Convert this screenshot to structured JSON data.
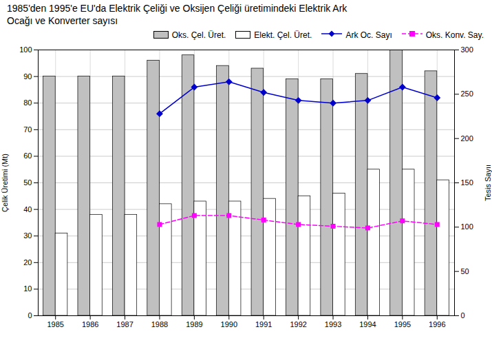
{
  "chart_data": {
    "type": "bar",
    "title": "1985'den 1995'e EU'da Elektrik Çeliği ve Oksijen Çeliği üretimindeki Elektrik Ark\nOcağı ve Konverter sayısı",
    "categories": [
      "1985",
      "1986",
      "1987",
      "1988",
      "1989",
      "1990",
      "1991",
      "1992",
      "1993",
      "1994",
      "1995",
      "1996"
    ],
    "series": [
      {
        "name": "Oks. Çel. Üret.",
        "type": "bar",
        "color": "#c0c0c0",
        "values": [
          90,
          90,
          90,
          96,
          98,
          94,
          93,
          89,
          89,
          91,
          100,
          92
        ]
      },
      {
        "name": "Elekt. Çel. Üret.",
        "type": "bar",
        "color": "#ffffff",
        "values": [
          31,
          38,
          38,
          42,
          43,
          43,
          44,
          45,
          46,
          55,
          55,
          51
        ]
      },
      {
        "name": "Ark Oc. Sayı",
        "type": "line",
        "axis": "y2",
        "color": "#0000cc",
        "marker": "diamond",
        "line_style": "solid",
        "values": [
          null,
          null,
          null,
          228,
          258,
          264,
          252,
          243,
          240,
          243,
          258,
          246
        ]
      },
      {
        "name": "Oks. Konv. Say.",
        "type": "line",
        "axis": "y2",
        "color": "#ff00ff",
        "marker": "square",
        "line_style": "dashed",
        "values": [
          null,
          null,
          null,
          103,
          113,
          113,
          108,
          103,
          101,
          99,
          107,
          103
        ]
      }
    ],
    "ylabel": "Çelik Üretimi (Mt)",
    "y2label": "Tesis Sayıı",
    "ylim": [
      0,
      100
    ],
    "yticks": [
      0,
      10,
      20,
      30,
      40,
      50,
      60,
      70,
      80,
      90,
      100
    ],
    "y2lim": [
      0,
      300
    ],
    "y2ticks": [
      0,
      50,
      100,
      150,
      200,
      250,
      300
    ],
    "grid": true,
    "legend": "upper right"
  }
}
